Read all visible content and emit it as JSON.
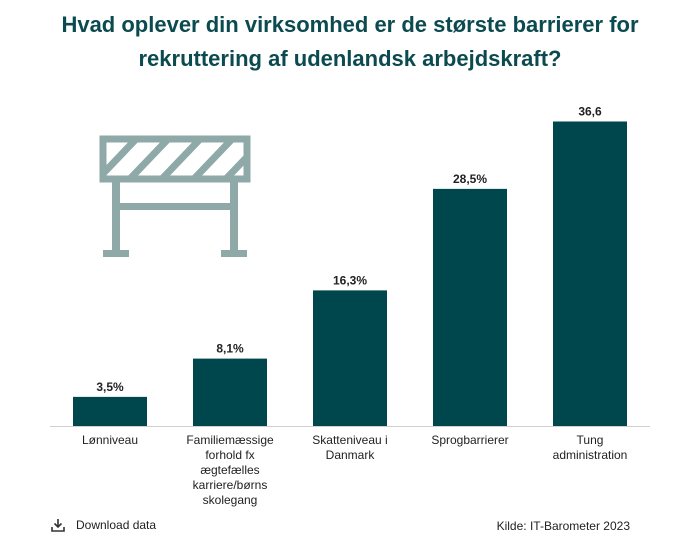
{
  "chart_data": {
    "type": "bar",
    "title": "Hvad oplever din virksomhed er de største barrierer for rekruttering af udenlandsk arbejdskraft?",
    "categories": [
      [
        "Lønniveau"
      ],
      [
        "Familiemæssige",
        "forhold fx",
        "ægtefælles",
        "karriere/børns",
        "skolegang"
      ],
      [
        "Skatteniveau i",
        "Danmark"
      ],
      [
        "Sprogbarrierer"
      ],
      [
        "Tung",
        "administration"
      ]
    ],
    "values": [
      3.5,
      8.1,
      16.3,
      28.5,
      36.6
    ],
    "value_labels": [
      "3,5%",
      "8,1%",
      "16,3%",
      "28,5%",
      "36,6"
    ],
    "ylim": [
      0,
      40
    ],
    "bar_color": "#00474d",
    "grid": false
  },
  "footer": {
    "download_label": "Download data",
    "source": "Kilde: IT-Barometer 2023"
  },
  "illustration": {
    "icon": "road-barrier-icon",
    "color": "#8ea9a8"
  }
}
